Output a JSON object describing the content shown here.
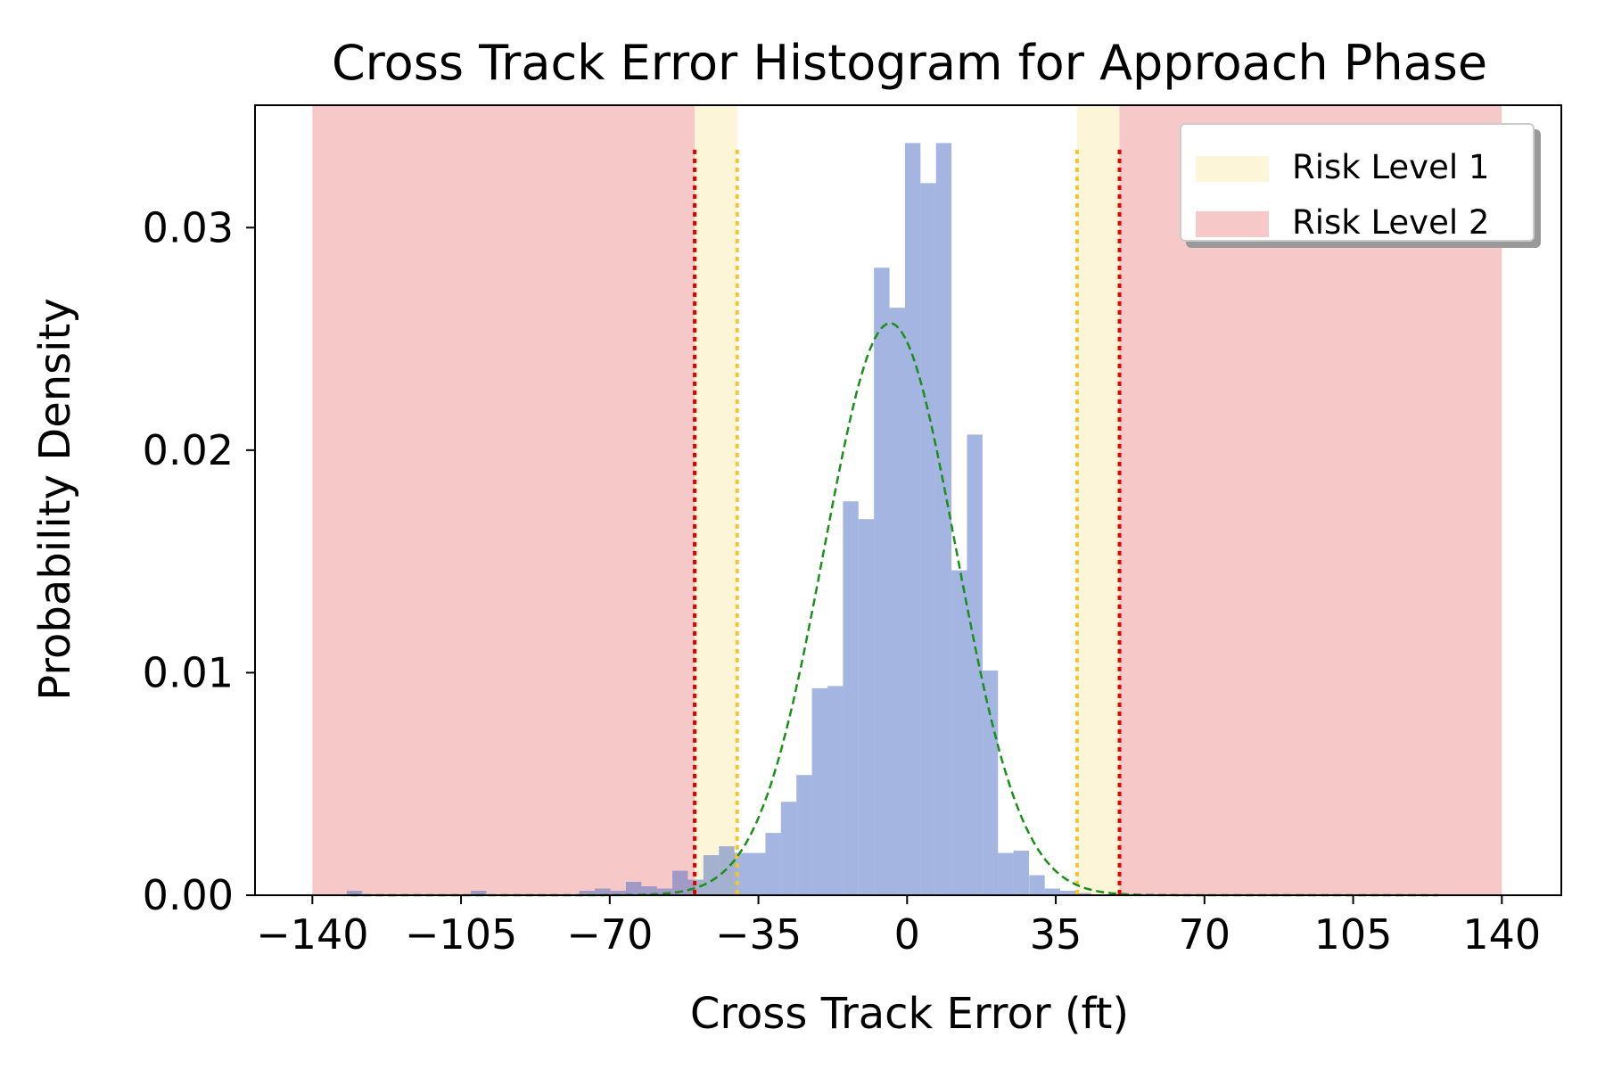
{
  "chart_data": {
    "type": "bar",
    "title": "Cross Track Error Histogram for Approach Phase",
    "xlabel": "Cross Track Error (ft)",
    "ylabel": "Probability Density",
    "xlim": [
      -153.5,
      154
    ],
    "ylim": [
      0,
      0.0355
    ],
    "xticks": [
      -140,
      -105,
      -70,
      -35,
      0,
      35,
      70,
      105,
      140
    ],
    "xtick_labels": [
      "−140",
      "−105",
      "−70",
      "−35",
      "0",
      "35",
      "70",
      "105",
      "140"
    ],
    "yticks": [
      0.0,
      0.01,
      0.02,
      0.03
    ],
    "ytick_labels": [
      "0.00",
      "0.01",
      "0.02",
      "0.03"
    ],
    "histogram": {
      "bin_width": 3.65,
      "bin_starts": [
        -131.9,
        -128.25,
        -124.6,
        -120.95,
        -117.3,
        -113.65,
        -110.0,
        -106.35,
        -102.7,
        -99.05,
        -95.4,
        -91.75,
        -88.1,
        -84.45,
        -80.8,
        -77.15,
        -73.5,
        -69.85,
        -66.2,
        -62.55,
        -58.9,
        -55.25,
        -51.6,
        -47.95,
        -44.3,
        -40.65,
        -37.0,
        -33.35,
        -29.7,
        -26.05,
        -22.4,
        -18.75,
        -15.1,
        -11.45,
        -7.8,
        -4.15,
        -0.5,
        3.15,
        6.8,
        10.45,
        14.1,
        17.75,
        21.4,
        25.05,
        28.75,
        32.4,
        36.05,
        39.7,
        43.35,
        47.0,
        50.65,
        54.3,
        57.95,
        61.6,
        65.25,
        68.9,
        72.55,
        76.2,
        79.85,
        83.5,
        87.15,
        90.8,
        94.45,
        98.1,
        101.75,
        105.4,
        109.05,
        112.7,
        116.35,
        120.0,
        123.65
      ],
      "densities": [
        0.0002,
        0.0,
        0.0,
        0.0,
        0.0,
        0.0,
        0.0,
        0.0,
        0.0002,
        0.0,
        0.0,
        0.0,
        0.0,
        0.0,
        0.0,
        0.0002,
        0.0003,
        0.0002,
        0.0006,
        0.0004,
        0.0003,
        0.0011,
        0.0007,
        0.0018,
        0.0022,
        0.0019,
        0.0019,
        0.0028,
        0.0042,
        0.0054,
        0.0093,
        0.0094,
        0.0177,
        0.0169,
        0.0282,
        0.0264,
        0.0338,
        0.032,
        0.0338,
        0.0146,
        0.0207,
        0.0101,
        0.0019,
        0.002,
        0.0009,
        0.0003,
        0.0002,
        0.0001,
        0.0,
        0.0,
        0.0,
        0.0,
        0.0,
        0.0,
        0.0,
        0.0,
        0.0,
        0.0,
        0.0,
        0.0,
        0.0,
        0.0,
        0.0,
        0.0,
        0.0,
        0.0,
        0.0,
        0.0,
        0.0,
        0.0,
        0.0
      ],
      "color": "#4a6cc3"
    },
    "fit_curve": {
      "style": "dashed",
      "color": "#1a8f1a",
      "mean": -4,
      "std": 15.5,
      "peak": 0.0257,
      "x_range": [
        -131,
        125
      ]
    },
    "risk_level_1_lines": [
      -50,
      -40,
      40,
      50
    ],
    "risk_level_2_lines": [
      -50,
      50
    ],
    "regions": [
      {
        "series": "Risk Level 2",
        "from": -140,
        "to": -50,
        "color": "#f7c8c8"
      },
      {
        "series": "Risk Level 1",
        "from": -50,
        "to": -40,
        "color": "#fdf5d8"
      },
      {
        "series": "Risk Level 1",
        "from": 40,
        "to": 50,
        "color": "#fdf5d8"
      },
      {
        "series": "Risk Level 2",
        "from": 50,
        "to": 140,
        "color": "#f7c8c8"
      }
    ],
    "risk_level_1_line_color": "#f2c533",
    "risk_level_2_line_color": "#dd0000",
    "legend": {
      "placement": "top-right",
      "entries": [
        {
          "label": "Risk Level 1",
          "color": "#fdf5d8"
        },
        {
          "label": "Risk Level 2",
          "color": "#f7c8c8"
        }
      ]
    }
  }
}
